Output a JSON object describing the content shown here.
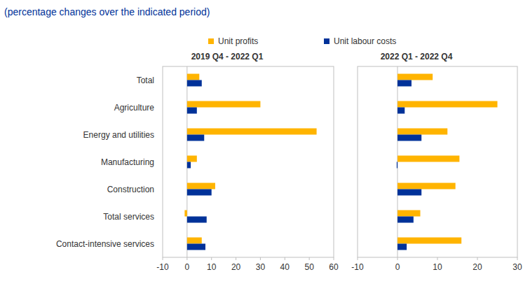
{
  "chart_data": {
    "type": "bar",
    "orientation": "horizontal",
    "subtitle": "(percentage changes over the indicated period)",
    "legend": "top",
    "categories": [
      "Total",
      "Agriculture",
      "Energy and utilities",
      "Manufacturing",
      "Construction",
      "Total services",
      "Contact-intensive services"
    ],
    "series": [
      {
        "name": "Unit profits",
        "color": "#ffb400"
      },
      {
        "name": "Unit labour costs",
        "color": "#003299"
      }
    ],
    "panels": [
      {
        "title": "2019 Q4 - 2022 Q1",
        "xlim": [
          -10,
          60
        ],
        "xticks": [
          -10,
          0,
          10,
          20,
          30,
          40,
          50,
          60
        ],
        "series": [
          {
            "values": [
              5,
              30,
              53,
              4,
              11.5,
              -1,
              6
            ]
          },
          {
            "values": [
              6,
              4,
              7,
              1.5,
              10,
              8,
              7.5
            ]
          }
        ]
      },
      {
        "title": "2022 Q1 - 2022 Q4",
        "xlim": [
          -10,
          30
        ],
        "xticks": [
          -10,
          0,
          10,
          20,
          30
        ],
        "series": [
          {
            "values": [
              8.8,
              25,
              12.5,
              15.5,
              14.5,
              5.7,
              16
            ]
          },
          {
            "values": [
              3.5,
              1.8,
              6,
              -0.2,
              6,
              4,
              2.3
            ]
          }
        ]
      }
    ]
  }
}
